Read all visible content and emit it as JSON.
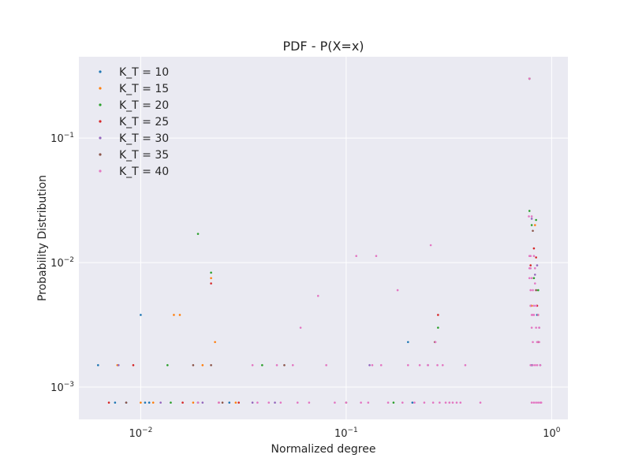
{
  "chart_data": {
    "type": "scatter",
    "title": "PDF - P(X=x)",
    "xlabel": "Normalized degree",
    "ylabel": "Probability Distribution",
    "xscale": "log",
    "yscale": "log",
    "xlim": [
      0.005,
      1.2
    ],
    "ylim": [
      0.00055,
      0.45
    ],
    "grid": true,
    "legend_position": "top-left",
    "x_ticks": [
      {
        "value": 0.01,
        "base": "10",
        "exp": "−2"
      },
      {
        "value": 0.1,
        "base": "10",
        "exp": "−1"
      },
      {
        "value": 1,
        "base": "10",
        "exp": "0"
      }
    ],
    "y_ticks": [
      {
        "value": 0.001,
        "base": "10",
        "exp": "−3"
      },
      {
        "value": 0.01,
        "base": "10",
        "exp": "−2"
      },
      {
        "value": 0.1,
        "base": "10",
        "exp": "−1"
      }
    ],
    "series": [
      {
        "name": "K_T = 10",
        "color": "#1f77b4",
        "points": [
          [
            0.0062,
            0.0015
          ],
          [
            0.0075,
            0.00075
          ],
          [
            0.0085,
            0.00075
          ],
          [
            0.01,
            0.0038
          ],
          [
            0.0105,
            0.00075
          ],
          [
            0.011,
            0.00075
          ],
          [
            0.019,
            0.00075
          ],
          [
            0.027,
            0.00075
          ],
          [
            0.2,
            0.0023
          ],
          [
            0.21,
            0.00075
          ],
          [
            0.78,
            0.3
          ],
          [
            0.8,
            0.0015
          ],
          [
            0.85,
            0.0038
          ],
          [
            0.88,
            0.0015
          ]
        ]
      },
      {
        "name": "K_T = 15",
        "color": "#ff7f0e",
        "points": [
          [
            0.0077,
            0.0015
          ],
          [
            0.01,
            0.00075
          ],
          [
            0.0115,
            0.00075
          ],
          [
            0.0145,
            0.0038
          ],
          [
            0.0155,
            0.0038
          ],
          [
            0.018,
            0.00075
          ],
          [
            0.02,
            0.0015
          ],
          [
            0.022,
            0.0075
          ],
          [
            0.023,
            0.0023
          ],
          [
            0.029,
            0.00075
          ],
          [
            0.78,
            0.3
          ],
          [
            0.8,
            0.0045
          ],
          [
            0.83,
            0.02
          ],
          [
            0.86,
            0.0038
          ]
        ]
      },
      {
        "name": "K_T = 20",
        "color": "#2ca02c",
        "points": [
          [
            0.0135,
            0.0015
          ],
          [
            0.014,
            0.00075
          ],
          [
            0.019,
            0.017
          ],
          [
            0.022,
            0.0083
          ],
          [
            0.039,
            0.0015
          ],
          [
            0.17,
            0.00075
          ],
          [
            0.28,
            0.003
          ],
          [
            0.78,
            0.3
          ],
          [
            0.78,
            0.026
          ],
          [
            0.8,
            0.02
          ],
          [
            0.82,
            0.0075
          ],
          [
            0.84,
            0.022
          ],
          [
            0.86,
            0.006
          ]
        ]
      },
      {
        "name": "K_T = 25",
        "color": "#d62728",
        "points": [
          [
            0.007,
            0.00075
          ],
          [
            0.0092,
            0.0015
          ],
          [
            0.016,
            0.00075
          ],
          [
            0.022,
            0.0068
          ],
          [
            0.024,
            0.00075
          ],
          [
            0.03,
            0.00075
          ],
          [
            0.28,
            0.0038
          ],
          [
            0.78,
            0.3
          ],
          [
            0.79,
            0.0095
          ],
          [
            0.82,
            0.013
          ],
          [
            0.84,
            0.011
          ],
          [
            0.85,
            0.0045
          ]
        ]
      },
      {
        "name": "K_T = 30",
        "color": "#9467bd",
        "points": [
          [
            0.0078,
            0.0015
          ],
          [
            0.0125,
            0.00075
          ],
          [
            0.02,
            0.00075
          ],
          [
            0.035,
            0.00075
          ],
          [
            0.045,
            0.00075
          ],
          [
            0.13,
            0.0015
          ],
          [
            0.25,
            0.0015
          ],
          [
            0.78,
            0.3
          ],
          [
            0.8,
            0.0225
          ],
          [
            0.83,
            0.008
          ],
          [
            0.85,
            0.0095
          ],
          [
            0.87,
            0.003
          ]
        ]
      },
      {
        "name": "K_T = 35",
        "color": "#8c564b",
        "points": [
          [
            0.0085,
            0.00075
          ],
          [
            0.018,
            0.0015
          ],
          [
            0.022,
            0.0015
          ],
          [
            0.025,
            0.00075
          ],
          [
            0.05,
            0.0015
          ],
          [
            0.1,
            0.00075
          ],
          [
            0.27,
            0.0023
          ],
          [
            0.78,
            0.3
          ],
          [
            0.79,
            0.0045
          ],
          [
            0.81,
            0.018
          ],
          [
            0.84,
            0.006
          ],
          [
            0.86,
            0.0023
          ]
        ]
      },
      {
        "name": "K_T = 40",
        "color": "#e377c2",
        "points": [
          [
            0.019,
            0.00075
          ],
          [
            0.024,
            0.00075
          ],
          [
            0.035,
            0.0015
          ],
          [
            0.037,
            0.00075
          ],
          [
            0.042,
            0.00075
          ],
          [
            0.046,
            0.0015
          ],
          [
            0.048,
            0.00075
          ],
          [
            0.055,
            0.0015
          ],
          [
            0.058,
            0.00075
          ],
          [
            0.06,
            0.003
          ],
          [
            0.066,
            0.00075
          ],
          [
            0.073,
            0.0054
          ],
          [
            0.08,
            0.0015
          ],
          [
            0.088,
            0.00075
          ],
          [
            0.1,
            0.00075
          ],
          [
            0.112,
            0.0113
          ],
          [
            0.118,
            0.00075
          ],
          [
            0.128,
            0.00075
          ],
          [
            0.134,
            0.0015
          ],
          [
            0.14,
            0.0113
          ],
          [
            0.148,
            0.0015
          ],
          [
            0.16,
            0.00075
          ],
          [
            0.178,
            0.006
          ],
          [
            0.188,
            0.00075
          ],
          [
            0.2,
            0.0015
          ],
          [
            0.215,
            0.00075
          ],
          [
            0.228,
            0.0015
          ],
          [
            0.24,
            0.00075
          ],
          [
            0.25,
            0.0015
          ],
          [
            0.258,
            0.0138
          ],
          [
            0.265,
            0.00075
          ],
          [
            0.272,
            0.0023
          ],
          [
            0.278,
            0.0015
          ],
          [
            0.285,
            0.00075
          ],
          [
            0.295,
            0.0015
          ],
          [
            0.305,
            0.00075
          ],
          [
            0.318,
            0.00075
          ],
          [
            0.33,
            0.00075
          ],
          [
            0.345,
            0.00075
          ],
          [
            0.36,
            0.00075
          ],
          [
            0.38,
            0.0015
          ],
          [
            0.45,
            0.00075
          ],
          [
            0.78,
            0.3
          ],
          [
            0.775,
            0.0235
          ],
          [
            0.78,
            0.0113
          ],
          [
            0.78,
            0.009
          ],
          [
            0.78,
            0.0075
          ],
          [
            0.79,
            0.006
          ],
          [
            0.79,
            0.0045
          ],
          [
            0.8,
            0.0038
          ],
          [
            0.8,
            0.003
          ],
          [
            0.81,
            0.0023
          ],
          [
            0.81,
            0.0015
          ],
          [
            0.82,
            0.00075
          ],
          [
            0.82,
            0.0113
          ],
          [
            0.83,
            0.009
          ],
          [
            0.83,
            0.0068
          ],
          [
            0.84,
            0.0045
          ],
          [
            0.84,
            0.003
          ],
          [
            0.85,
            0.0023
          ],
          [
            0.85,
            0.0015
          ],
          [
            0.86,
            0.00075
          ],
          [
            0.86,
            0.0038
          ],
          [
            0.87,
            0.003
          ],
          [
            0.87,
            0.0023
          ],
          [
            0.88,
            0.0015
          ],
          [
            0.88,
            0.00075
          ],
          [
            0.89,
            0.00075
          ],
          [
            0.79,
            0.0015
          ],
          [
            0.8,
            0.00075
          ],
          [
            0.83,
            0.0015
          ],
          [
            0.84,
            0.00075
          ],
          [
            0.82,
            0.0038
          ],
          [
            0.81,
            0.006
          ],
          [
            0.8,
            0.0075
          ],
          [
            0.79,
            0.009
          ],
          [
            0.79,
            0.0113
          ],
          [
            0.8,
            0.0235
          ],
          [
            0.82,
            0.0045
          ],
          [
            0.81,
            0.0038
          ]
        ]
      }
    ]
  }
}
